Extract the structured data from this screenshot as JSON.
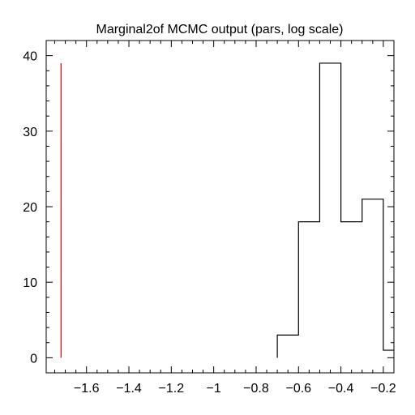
{
  "chart_data": {
    "type": "bar",
    "title": "Marginal2of MCMC output (pars, log scale)",
    "xlabel": "",
    "ylabel": "",
    "xlim": [
      -1.79,
      -0.15
    ],
    "ylim": [
      -2,
      42
    ],
    "x_ticks": [
      -1.6,
      -1.4,
      -1.2,
      -1.0,
      -0.8,
      -0.6,
      -0.4,
      -0.2
    ],
    "x_tick_labels": [
      "−1.6",
      "−1.4",
      "−1.2",
      "−1",
      "−0.8",
      "−0.6",
      "−0.4",
      "−0.2"
    ],
    "y_ticks": [
      0,
      10,
      20,
      30,
      40
    ],
    "y_tick_labels": [
      "0",
      "10",
      "20",
      "30",
      "40"
    ],
    "histogram": {
      "bin_edges": [
        -0.7,
        -0.6,
        -0.5,
        -0.4,
        -0.3,
        -0.2,
        -0.1
      ],
      "counts": [
        3,
        18,
        39,
        18,
        21,
        1
      ],
      "color": "#000000"
    },
    "reference_line": {
      "x": -1.72,
      "y_range": [
        0,
        39
      ],
      "color": "#e00000"
    },
    "grid": false
  }
}
